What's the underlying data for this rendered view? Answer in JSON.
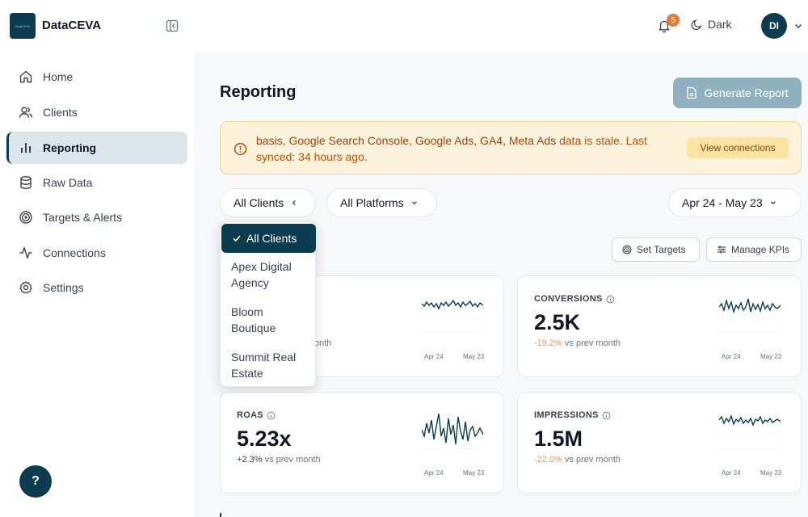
{
  "app": {
    "brand": "DataCEVA",
    "logo_text": "DataCEVA"
  },
  "header": {
    "notification_count": "5",
    "theme_label": "Dark",
    "avatar_initials": "DI"
  },
  "sidebar": {
    "items": [
      {
        "label": "Home",
        "icon": "home-icon"
      },
      {
        "label": "Clients",
        "icon": "users-icon"
      },
      {
        "label": "Reporting",
        "icon": "bar-chart-icon",
        "active": true
      },
      {
        "label": "Raw Data",
        "icon": "database-icon"
      },
      {
        "label": "Targets & Alerts",
        "icon": "target-icon"
      },
      {
        "label": "Connections",
        "icon": "activity-icon"
      },
      {
        "label": "Settings",
        "icon": "gear-icon"
      }
    ],
    "help_label": "?"
  },
  "main": {
    "title": "Reporting",
    "generate_button": "Generate Report",
    "alert": {
      "sources": "basis, Google Search Console, Google Ads, GA4, Meta Ads",
      "message": " data is stale. Last synced: 34 hours ago.",
      "action": "View connections"
    },
    "filters": {
      "clients": "All Clients",
      "platforms": "All Platforms",
      "date_range": "Apr 24 - May 23"
    },
    "actions": {
      "set_targets": "Set Targets",
      "manage_kpis": "Manage KPIs"
    },
    "client_dropdown": {
      "options": [
        "All Clients",
        "Apex Digital Agency",
        "Bloom Boutique",
        "Summit Real Estate"
      ],
      "option_lines": [
        [
          "All Clients"
        ],
        [
          "Apex Digital",
          "Agency"
        ],
        [
          "Bloom",
          "Boutique"
        ],
        [
          "Summit Real",
          "Estate"
        ]
      ],
      "selected": "All Clients"
    },
    "cards": [
      {
        "label": "",
        "value": "",
        "delta": "",
        "delta_suffix": "onth",
        "start": "Apr 24",
        "end": "May 23"
      },
      {
        "label": "CONVERSIONS",
        "value": "2.5K",
        "delta": "-19.2%",
        "delta_suffix": "vs prev month",
        "start": "Apr 24",
        "end": "May 23"
      },
      {
        "label": "ROAS",
        "value": "5.23x",
        "delta": "+2.3%",
        "delta_suffix": "vs prev month",
        "start": "Apr 24",
        "end": "May 23"
      },
      {
        "label": "IMPRESSIONS",
        "value": "1.5M",
        "delta": "-22.0%",
        "delta_suffix": "vs prev month",
        "start": "Apr 24",
        "end": "May 23"
      }
    ]
  },
  "colors": {
    "brand": "#0d3b4f",
    "alert_bg": "#fdf3dc",
    "negative": "#e59a6c",
    "badge": "#e07b39"
  }
}
